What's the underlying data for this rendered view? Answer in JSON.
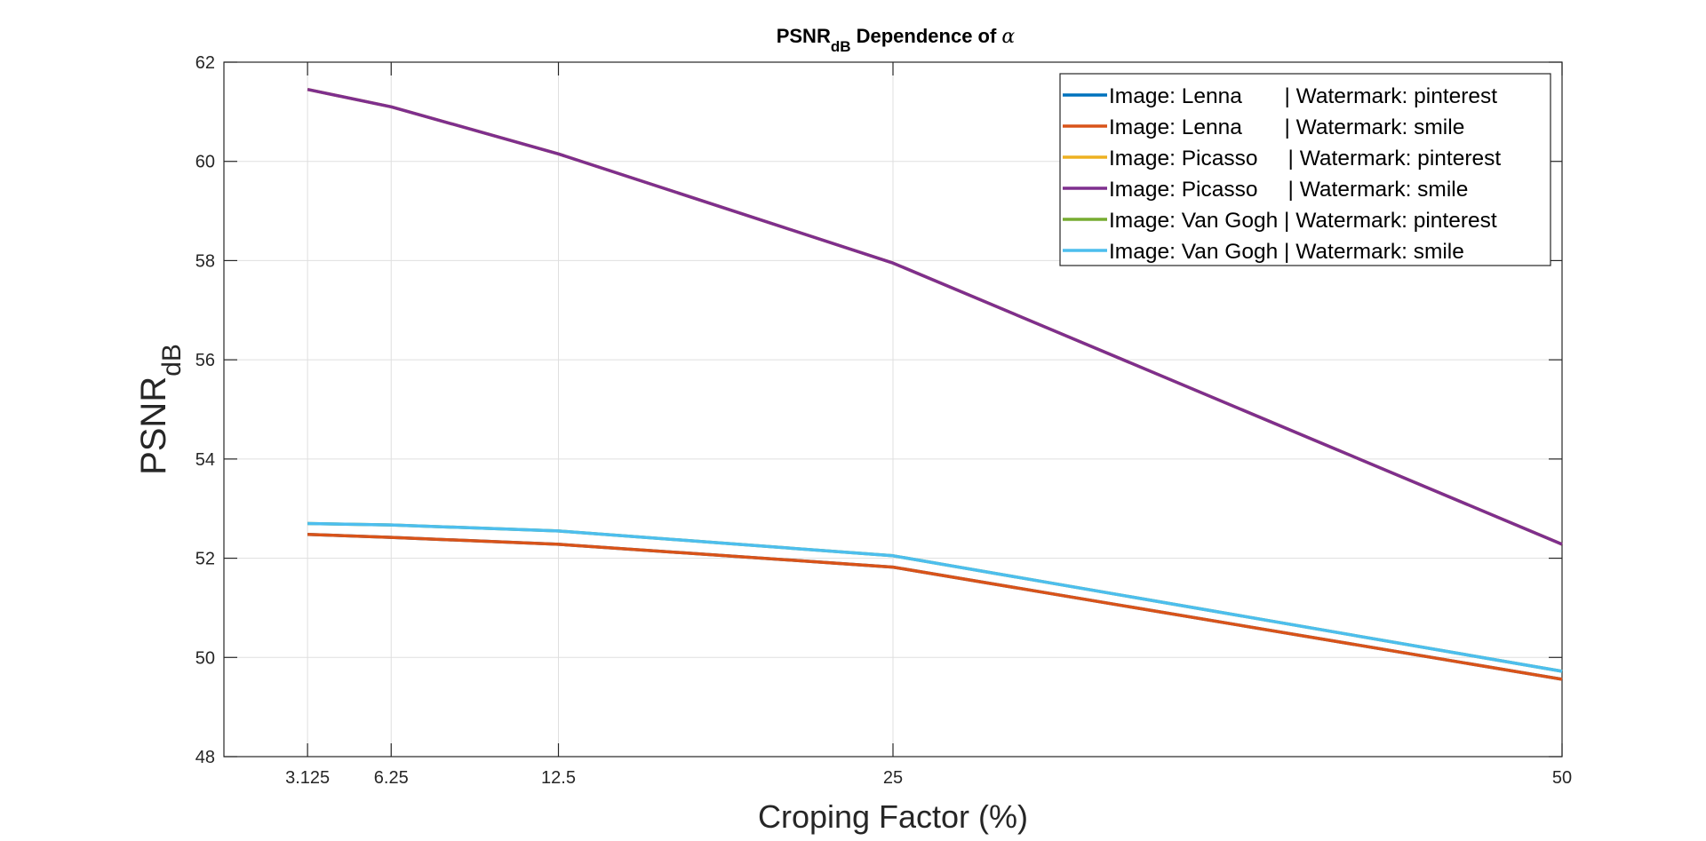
{
  "chart_data": {
    "type": "line",
    "title": {
      "main": "PSNR",
      "sub": "dB",
      "rest": " Dependence of ",
      "symbol": "α"
    },
    "xlabel": "Croping Factor (%)",
    "ylabel": {
      "main": "PSNR",
      "sub": "dB"
    },
    "xlim": [
      0,
      50
    ],
    "ylim": [
      48,
      62
    ],
    "xticks": [
      3.125,
      6.25,
      12.5,
      25,
      50
    ],
    "xtick_labels": [
      "3.125",
      "6.25",
      "12.5",
      "25",
      "50"
    ],
    "yticks": [
      48,
      50,
      52,
      54,
      56,
      58,
      60,
      62
    ],
    "yscale": "linear",
    "grid": true,
    "legend_placement": "top-right",
    "x": [
      3.125,
      6.25,
      12.5,
      25,
      50
    ],
    "series": [
      {
        "name": "Image: Lenna       | Watermark: pinterest",
        "color": "#0072BD",
        "values": [
          52.48,
          52.42,
          52.28,
          51.82,
          49.56
        ]
      },
      {
        "name": "Image: Lenna       | Watermark: smile",
        "color": "#D95319",
        "values": [
          52.48,
          52.42,
          52.28,
          51.82,
          49.56
        ]
      },
      {
        "name": "Image: Picasso     | Watermark: pinterest",
        "color": "#EDB120",
        "values": [
          61.45,
          61.1,
          60.15,
          57.95,
          52.28
        ]
      },
      {
        "name": "Image: Picasso     | Watermark: smile",
        "color": "#7E2F8E",
        "values": [
          61.45,
          61.1,
          60.15,
          57.95,
          52.28
        ]
      },
      {
        "name": "Image: Van Gogh | Watermark: pinterest",
        "color": "#77AC30",
        "values": [
          52.7,
          52.67,
          52.55,
          52.05,
          49.72
        ]
      },
      {
        "name": "Image: Van Gogh | Watermark: smile",
        "color": "#4DBEEE",
        "values": [
          52.7,
          52.67,
          52.55,
          52.05,
          49.72
        ]
      }
    ]
  }
}
